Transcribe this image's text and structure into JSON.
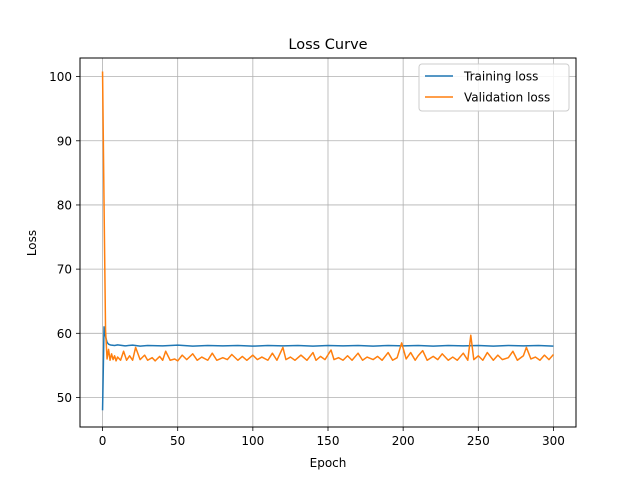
{
  "chart_data": {
    "type": "line",
    "title": "Loss Curve",
    "xlabel": "Epoch",
    "ylabel": "Loss",
    "xlim": [
      -15,
      315
    ],
    "ylim": [
      45.4,
      102.9
    ],
    "xticks": [
      0,
      50,
      100,
      150,
      200,
      250,
      300
    ],
    "yticks": [
      50,
      60,
      70,
      80,
      90,
      100
    ],
    "grid": true,
    "legend_position": "top-right",
    "series": [
      {
        "name": "Training loss",
        "color": "#1f77b4",
        "x": [
          0,
          1,
          2,
          3,
          4,
          5,
          6,
          8,
          10,
          15,
          20,
          25,
          30,
          40,
          50,
          60,
          70,
          80,
          90,
          100,
          110,
          120,
          130,
          140,
          150,
          160,
          170,
          180,
          190,
          200,
          210,
          220,
          230,
          240,
          250,
          260,
          270,
          280,
          290,
          300
        ],
        "values": [
          48.0,
          61.0,
          59.5,
          58.6,
          58.3,
          58.2,
          58.15,
          58.1,
          58.2,
          58.05,
          58.15,
          58.0,
          58.1,
          58.05,
          58.15,
          58.0,
          58.1,
          58.05,
          58.1,
          58.0,
          58.1,
          58.05,
          58.1,
          58.0,
          58.1,
          58.05,
          58.1,
          58.0,
          58.1,
          58.05,
          58.1,
          58.0,
          58.1,
          58.05,
          58.1,
          58.0,
          58.1,
          58.05,
          58.1,
          58.0
        ]
      },
      {
        "name": "Validation loss",
        "color": "#ff7f0e",
        "x": [
          0,
          1,
          2,
          3,
          4,
          5,
          6,
          7,
          8,
          9,
          10,
          12,
          14,
          16,
          18,
          20,
          22,
          25,
          28,
          30,
          33,
          35,
          38,
          40,
          42,
          45,
          48,
          50,
          53,
          56,
          60,
          63,
          66,
          70,
          73,
          76,
          80,
          83,
          86,
          90,
          93,
          96,
          100,
          103,
          106,
          110,
          113,
          116,
          120,
          122,
          125,
          128,
          132,
          136,
          140,
          142,
          145,
          148,
          152,
          154,
          157,
          160,
          163,
          166,
          170,
          173,
          176,
          180,
          183,
          186,
          190,
          193,
          196,
          199,
          202,
          205,
          208,
          210,
          213,
          216,
          220,
          223,
          226,
          230,
          233,
          236,
          240,
          243,
          245,
          247,
          250,
          253,
          256,
          260,
          263,
          266,
          270,
          273,
          276,
          280,
          282,
          285,
          288,
          291,
          294,
          297,
          300
        ],
        "values": [
          100.8,
          80.0,
          60.5,
          56.0,
          57.5,
          55.8,
          56.8,
          55.9,
          56.5,
          55.7,
          56.3,
          55.8,
          57.2,
          55.8,
          56.5,
          55.8,
          57.8,
          55.9,
          56.6,
          55.8,
          56.2,
          55.7,
          56.4,
          55.8,
          57.2,
          55.8,
          56.0,
          55.7,
          56.6,
          55.9,
          56.8,
          55.8,
          56.3,
          55.8,
          56.9,
          55.8,
          56.2,
          55.9,
          56.7,
          55.8,
          56.4,
          55.8,
          56.6,
          55.9,
          56.3,
          55.8,
          56.9,
          55.8,
          57.8,
          55.9,
          56.3,
          55.8,
          56.6,
          55.8,
          57.0,
          55.8,
          56.4,
          55.9,
          57.4,
          55.9,
          56.2,
          55.8,
          56.5,
          55.8,
          56.9,
          55.8,
          56.3,
          55.9,
          56.4,
          55.8,
          57.0,
          55.8,
          56.2,
          58.5,
          56.0,
          57.0,
          55.8,
          56.5,
          57.3,
          55.8,
          56.4,
          55.9,
          56.8,
          55.8,
          56.3,
          55.8,
          56.9,
          55.8,
          59.7,
          55.9,
          56.5,
          55.8,
          57.0,
          55.8,
          56.6,
          55.9,
          56.2,
          57.2,
          55.8,
          56.5,
          57.8,
          56.0,
          56.3,
          55.8,
          56.6,
          55.9,
          56.7
        ]
      }
    ]
  }
}
